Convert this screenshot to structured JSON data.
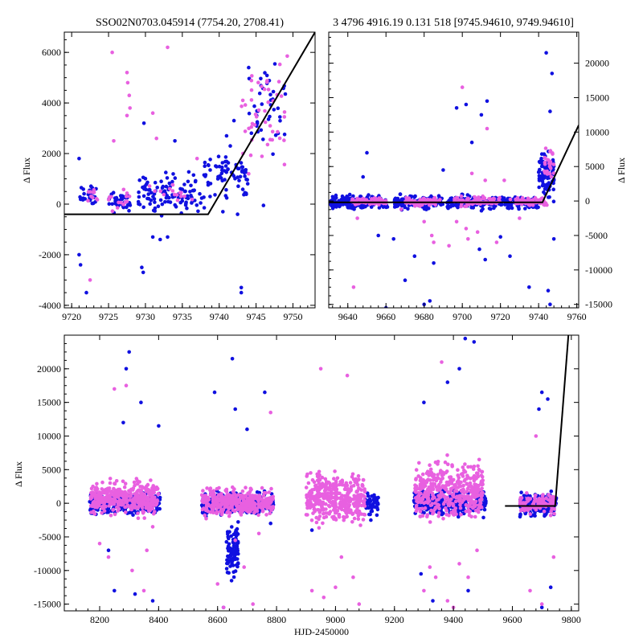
{
  "figure": {
    "xlabel": "HJD-2450000"
  },
  "colors": {
    "series_a": "#1010e0",
    "series_b": "#e860e0",
    "fit_line": "#000000"
  },
  "chart_data": [
    {
      "id": "top-left",
      "type": "scatter",
      "title": "SSO02N0703.045914 (7754.20, 2708.41)",
      "xlabel": "",
      "ylabel": "Δ Flux",
      "ylabel_side": "left",
      "xlim": [
        9719,
        9753
      ],
      "ylim": [
        -4100,
        6800
      ],
      "xticks": [
        9720,
        9725,
        9730,
        9735,
        9740,
        9745,
        9750
      ],
      "yticks": [
        -4000,
        -2000,
        0,
        2000,
        4000,
        6000
      ],
      "fit_line": {
        "x": [
          9719,
          9738.5,
          9753
        ],
        "y": [
          -400,
          -400,
          6800
        ]
      },
      "series": [
        {
          "name": "blue",
          "color": "#1010e0",
          "clusters": [
            {
              "x": [
                9721,
                9723.5
              ],
              "y": [
                -300,
                900
              ],
              "n": 28
            },
            {
              "x": [
                9725,
                9728
              ],
              "y": [
                -400,
                700
              ],
              "n": 40
            },
            {
              "x": [
                9729,
                9738
              ],
              "y": [
                -600,
                1400
              ],
              "n": 110
            },
            {
              "x": [
                9738,
                9744
              ],
              "y": [
                0,
                2400
              ],
              "n": 70
            },
            {
              "x": [
                9744,
                9749
              ],
              "y": [
                1500,
                6600
              ],
              "n": 40
            }
          ],
          "outliers": [
            [
              9721,
              1800
            ],
            [
              9721,
              -2000
            ],
            [
              9721.2,
              -2400
            ],
            [
              9722,
              -3500
            ],
            [
              9729.5,
              -2500
            ],
            [
              9729.7,
              -2700
            ],
            [
              9729.8,
              3200
            ],
            [
              9731,
              -1300
            ],
            [
              9732,
              -1400
            ],
            [
              9733,
              -1300
            ],
            [
              9734,
              2500
            ],
            [
              9740.5,
              -300
            ],
            [
              9741,
              2700
            ],
            [
              9741.5,
              2300
            ],
            [
              9742,
              3300
            ],
            [
              9742.5,
              -400
            ],
            [
              9743,
              -3300
            ],
            [
              9743,
              -3500
            ],
            [
              9744,
              5400
            ],
            [
              9746,
              -50
            ],
            [
              9748,
              2800
            ]
          ]
        },
        {
          "name": "magenta",
          "color": "#e860e0",
          "clusters": [
            {
              "x": [
                9722,
                9723.5
              ],
              "y": [
                -200,
                900
              ],
              "n": 10
            },
            {
              "x": [
                9725,
                9728
              ],
              "y": [
                -500,
                800
              ],
              "n": 14
            },
            {
              "x": [
                9730,
                9737
              ],
              "y": [
                -200,
                900
              ],
              "n": 15
            },
            {
              "x": [
                9743,
                9749.5
              ],
              "y": [
                800,
                6600
              ],
              "n": 45
            }
          ],
          "outliers": [
            [
              9722.5,
              -3000
            ],
            [
              9725.5,
              6000
            ],
            [
              9725.7,
              2500
            ],
            [
              9727.5,
              5200
            ],
            [
              9727.6,
              4800
            ],
            [
              9727.8,
              4300
            ],
            [
              9727.9,
              3800
            ],
            [
              9727.5,
              3500
            ],
            [
              9731,
              3600
            ],
            [
              9731.5,
              2600
            ],
            [
              9733,
              6200
            ],
            [
              9737,
              1800
            ],
            [
              9744,
              1200
            ]
          ]
        }
      ]
    },
    {
      "id": "top-right",
      "type": "scatter",
      "title": "3 4796 4916.19 0.131 518 [9745.94610, 9749.94610]",
      "xlabel": "",
      "ylabel": "Δ Flux",
      "ylabel_side": "right",
      "xlim": [
        9630,
        9761
      ],
      "ylim": [
        -15500,
        24500
      ],
      "xticks": [
        9640,
        9660,
        9680,
        9700,
        9720,
        9740,
        9760
      ],
      "yticks": [
        -15000,
        -10000,
        -5000,
        0,
        5000,
        10000,
        15000,
        20000
      ],
      "fit_line": {
        "x": [
          9630,
          9742,
          9761
        ],
        "y": [
          -200,
          -200,
          11000
        ]
      },
      "series": [
        {
          "name": "blue",
          "color": "#1010e0",
          "clusters": [
            {
              "x": [
                9631,
                9661
              ],
              "y": [
                -1500,
                1200
              ],
              "n": 180
            },
            {
              "x": [
                9664,
                9690
              ],
              "y": [
                -1500,
                1200
              ],
              "n": 140
            },
            {
              "x": [
                9692,
                9740
              ],
              "y": [
                -1500,
                1200
              ],
              "n": 240
            },
            {
              "x": [
                9740,
                9748
              ],
              "y": [
                -1000,
                9000
              ],
              "n": 90
            }
          ],
          "outliers": [
            [
              9648,
              3500
            ],
            [
              9650,
              7000
            ],
            [
              9656,
              -5000
            ],
            [
              9660,
              -15500
            ],
            [
              9664,
              -5500
            ],
            [
              9670,
              -11500
            ],
            [
              9675,
              -8000
            ],
            [
              9680,
              -15000
            ],
            [
              9683,
              -14500
            ],
            [
              9685,
              -9000
            ],
            [
              9690,
              4500
            ],
            [
              9697,
              13500
            ],
            [
              9702,
              14000
            ],
            [
              9705,
              8500
            ],
            [
              9709,
              -7000
            ],
            [
              9710,
              12500
            ],
            [
              9712,
              -8500
            ],
            [
              9713,
              14500
            ],
            [
              9720,
              -5200
            ],
            [
              9725,
              -8000
            ],
            [
              9735,
              -12500
            ],
            [
              9744,
              21500
            ],
            [
              9745,
              -13000
            ],
            [
              9746,
              -15000
            ],
            [
              9747,
              18500
            ],
            [
              9746,
              13000
            ],
            [
              9748,
              -5500
            ]
          ]
        },
        {
          "name": "magenta",
          "color": "#e860e0",
          "clusters": [
            {
              "x": [
                9642,
                9660
              ],
              "y": [
                -800,
                800
              ],
              "n": 60
            },
            {
              "x": [
                9670,
                9690
              ],
              "y": [
                -1000,
                800
              ],
              "n": 70
            },
            {
              "x": [
                9695,
                9720
              ],
              "y": [
                -1000,
                900
              ],
              "n": 80
            },
            {
              "x": [
                9725,
                9745
              ],
              "y": [
                -800,
                900
              ],
              "n": 60
            },
            {
              "x": [
                9743,
                9748
              ],
              "y": [
                2000,
                9000
              ],
              "n": 25
            }
          ],
          "outliers": [
            [
              9643,
              -12500
            ],
            [
              9645,
              -2500
            ],
            [
              9668,
              -1200
            ],
            [
              9680,
              -3000
            ],
            [
              9684,
              -5000
            ],
            [
              9685,
              -6000
            ],
            [
              9693,
              -6500
            ],
            [
              9697,
              -3000
            ],
            [
              9700,
              16500
            ],
            [
              9702,
              -4000
            ],
            [
              9703,
              -5500
            ],
            [
              9705,
              4000
            ],
            [
              9708,
              -4500
            ],
            [
              9712,
              3000
            ],
            [
              9713,
              10500
            ],
            [
              9718,
              -6000
            ],
            [
              9722,
              3000
            ],
            [
              9730,
              -2500
            ]
          ]
        }
      ]
    },
    {
      "id": "bottom",
      "type": "scatter",
      "title": "",
      "xlabel": "HJD-2450000",
      "ylabel": "Δ Flux",
      "ylabel_side": "left",
      "xlim": [
        8080,
        9825
      ],
      "ylim": [
        -16000,
        25000
      ],
      "xticks": [
        8200,
        8400,
        8600,
        8800,
        9000,
        9200,
        9400,
        9600,
        9800
      ],
      "yticks": [
        -15000,
        -10000,
        -5000,
        0,
        5000,
        10000,
        15000,
        20000
      ],
      "fit_line": {
        "x": [
          9575,
          9745,
          9790
        ],
        "y": [
          -400,
          -400,
          25000
        ]
      },
      "series": [
        {
          "name": "blue",
          "color": "#1010e0",
          "clusters": [
            {
              "x": [
                8165,
                8405
              ],
              "y": [
                -2200,
                2200
              ],
              "n": 340
            },
            {
              "x": [
                8545,
                8790
              ],
              "y": [
                -2200,
                2200
              ],
              "n": 320
            },
            {
              "x": [
                8630,
                8670
              ],
              "y": [
                -12500,
                -2000
              ],
              "n": 90
            },
            {
              "x": [
                9100,
                9145
              ],
              "y": [
                -2000,
                2000
              ],
              "n": 60
            },
            {
              "x": [
                9265,
                9510
              ],
              "y": [
                -2500,
                2500
              ],
              "n": 300
            },
            {
              "x": [
                9625,
                9750
              ],
              "y": [
                -2500,
                2000
              ],
              "n": 200
            }
          ],
          "outliers": [
            [
              8230,
              -7000
            ],
            [
              8250,
              -13000
            ],
            [
              8280,
              12000
            ],
            [
              8290,
              20000
            ],
            [
              8300,
              22500
            ],
            [
              8320,
              -13500
            ],
            [
              8340,
              15000
            ],
            [
              8380,
              -14500
            ],
            [
              8400,
              11500
            ],
            [
              8590,
              16500
            ],
            [
              8620,
              -15500
            ],
            [
              8650,
              21500
            ],
            [
              8660,
              14000
            ],
            [
              8700,
              11000
            ],
            [
              8760,
              16500
            ],
            [
              8780,
              -3000
            ],
            [
              8920,
              -4000
            ],
            [
              9120,
              -2500
            ],
            [
              9290,
              -10500
            ],
            [
              9300,
              15000
            ],
            [
              9330,
              -14500
            ],
            [
              9380,
              18000
            ],
            [
              9420,
              20000
            ],
            [
              9440,
              24500
            ],
            [
              9450,
              -13000
            ],
            [
              9470,
              24000
            ],
            [
              9690,
              14000
            ],
            [
              9700,
              16500
            ],
            [
              9720,
              15500
            ],
            [
              9730,
              -12500
            ],
            [
              9700,
              -15500
            ]
          ]
        },
        {
          "name": "magenta",
          "color": "#e860e0",
          "clusters": [
            {
              "x": [
                8170,
                8400
              ],
              "y": [
                -2500,
                4000
              ],
              "n": 380
            },
            {
              "x": [
                8545,
                8790
              ],
              "y": [
                -2500,
                3000
              ],
              "n": 360
            },
            {
              "x": [
                8900,
                9100
              ],
              "y": [
                -4000,
                5500
              ],
              "n": 380
            },
            {
              "x": [
                9270,
                9500
              ],
              "y": [
                -3500,
                7500
              ],
              "n": 420
            },
            {
              "x": [
                9625,
                9745
              ],
              "y": [
                -2000,
                2000
              ],
              "n": 120
            }
          ],
          "outliers": [
            [
              8200,
              -6000
            ],
            [
              8230,
              -8000
            ],
            [
              8250,
              17000
            ],
            [
              8290,
              17500
            ],
            [
              8310,
              -10000
            ],
            [
              8350,
              -13000
            ],
            [
              8360,
              -7000
            ],
            [
              8380,
              -3500
            ],
            [
              8600,
              -12000
            ],
            [
              8620,
              -15500
            ],
            [
              8660,
              -5500
            ],
            [
              8690,
              -9500
            ],
            [
              8720,
              -15000
            ],
            [
              8740,
              -4500
            ],
            [
              8780,
              13500
            ],
            [
              8920,
              -13000
            ],
            [
              8950,
              20000
            ],
            [
              8960,
              -14000
            ],
            [
              9000,
              -12500
            ],
            [
              9020,
              -8000
            ],
            [
              9040,
              19000
            ],
            [
              9060,
              -11000
            ],
            [
              9080,
              -15000
            ],
            [
              9300,
              -13000
            ],
            [
              9320,
              -9500
            ],
            [
              9340,
              -11000
            ],
            [
              9360,
              21000
            ],
            [
              9380,
              -14500
            ],
            [
              9400,
              -15500
            ],
            [
              9420,
              -9000
            ],
            [
              9450,
              -11000
            ],
            [
              9480,
              -7000
            ],
            [
              9660,
              -13000
            ],
            [
              9680,
              10000
            ],
            [
              9700,
              -15000
            ],
            [
              9740,
              -8000
            ]
          ]
        }
      ]
    }
  ]
}
